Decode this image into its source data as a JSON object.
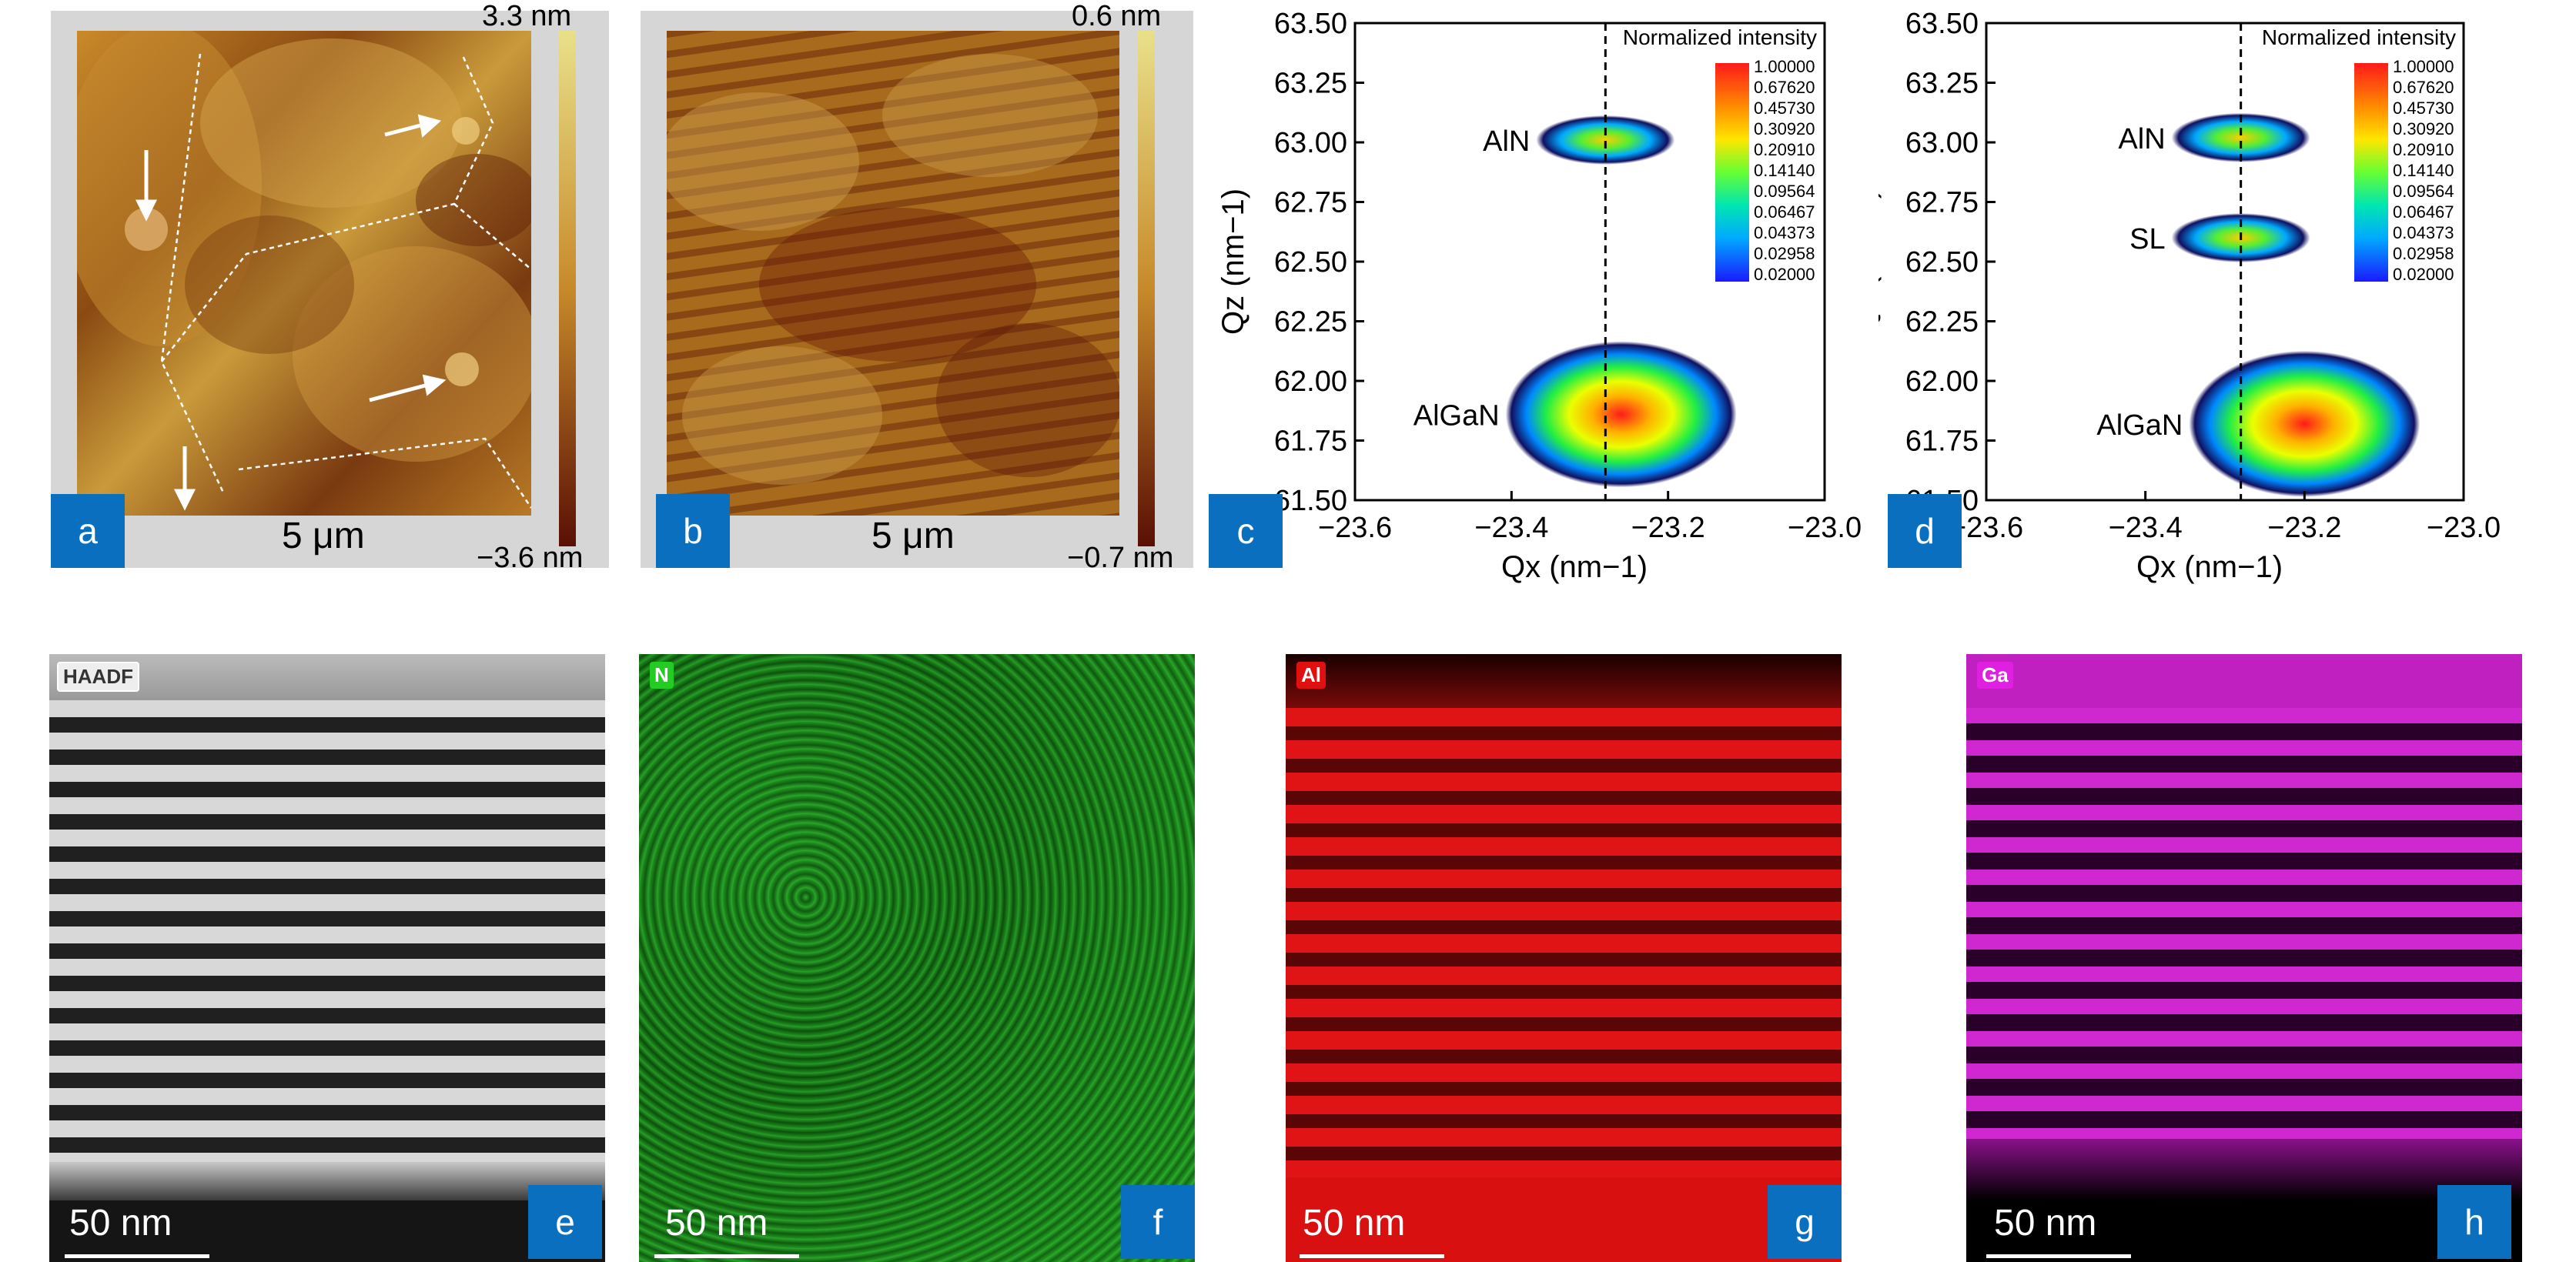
{
  "afm": {
    "a": {
      "panel": "a",
      "scale": "5 μm",
      "max": "3.3 nm",
      "min": "−3.6 nm"
    },
    "b": {
      "panel": "b",
      "scale": "5 μm",
      "max": "0.6 nm",
      "min": "−0.7 nm"
    }
  },
  "rsm_axes": {
    "y_ticks": [
      "63.50",
      "63.25",
      "63.00",
      "62.75",
      "62.50",
      "62.25",
      "62.00",
      "61.75",
      "61.50"
    ],
    "x_ticks": [
      "−23.6",
      "−23.4",
      "−23.2",
      "−23.0"
    ],
    "legend_title": "Normalized intensity",
    "legend_values": [
      "1.00000",
      "0.67620",
      "0.45730",
      "0.30920",
      "0.20910",
      "0.14140",
      "0.09564",
      "0.06467",
      "0.04373",
      "0.02958",
      "0.02000"
    ],
    "legend_colors": [
      "#ff1a1a",
      "#ff6a00",
      "#ffa500",
      "#ffe600",
      "#b8ff00",
      "#33ff33",
      "#00e68a",
      "#00e6e6",
      "#00aaff",
      "#0055ff",
      "#1a1aff"
    ]
  },
  "chart_data": [
    {
      "type": "heatmap",
      "panel": "c",
      "xlabel": "Qx (nm−1)",
      "ylabel": "Qz (nm−1)",
      "xlim": [
        -23.6,
        -23.0
      ],
      "ylim": [
        61.5,
        63.5
      ],
      "reference_line_x": -23.28,
      "peaks": [
        {
          "label": "AlN",
          "qx": -23.28,
          "qz": 63.01
        },
        {
          "label": "AlGaN",
          "qx": -23.26,
          "qz": 61.86
        }
      ]
    },
    {
      "type": "heatmap",
      "panel": "d",
      "xlabel": "Qx (nm−1)",
      "ylabel": "Qz (nm−1)",
      "xlim": [
        -23.6,
        -23.0
      ],
      "ylim": [
        61.5,
        63.5
      ],
      "reference_line_x": -23.28,
      "peaks": [
        {
          "label": "AlN",
          "qx": -23.28,
          "qz": 63.02
        },
        {
          "label": "SL",
          "qx": -23.28,
          "qz": 62.6
        },
        {
          "label": "AlGaN",
          "qx": -23.2,
          "qz": 61.82
        }
      ]
    }
  ],
  "tem": [
    {
      "panel": "e",
      "element_tag": "HAADF",
      "scale": "50 nm",
      "tag_color": "#ffffff"
    },
    {
      "panel": "f",
      "element_tag": "N",
      "scale": "50 nm",
      "tag_color": "#22cc22"
    },
    {
      "panel": "g",
      "element_tag": "Al",
      "scale": "50 nm",
      "tag_color": "#e01010"
    },
    {
      "panel": "h",
      "element_tag": "Ga",
      "scale": "50 nm",
      "tag_color": "#e020e0"
    }
  ]
}
